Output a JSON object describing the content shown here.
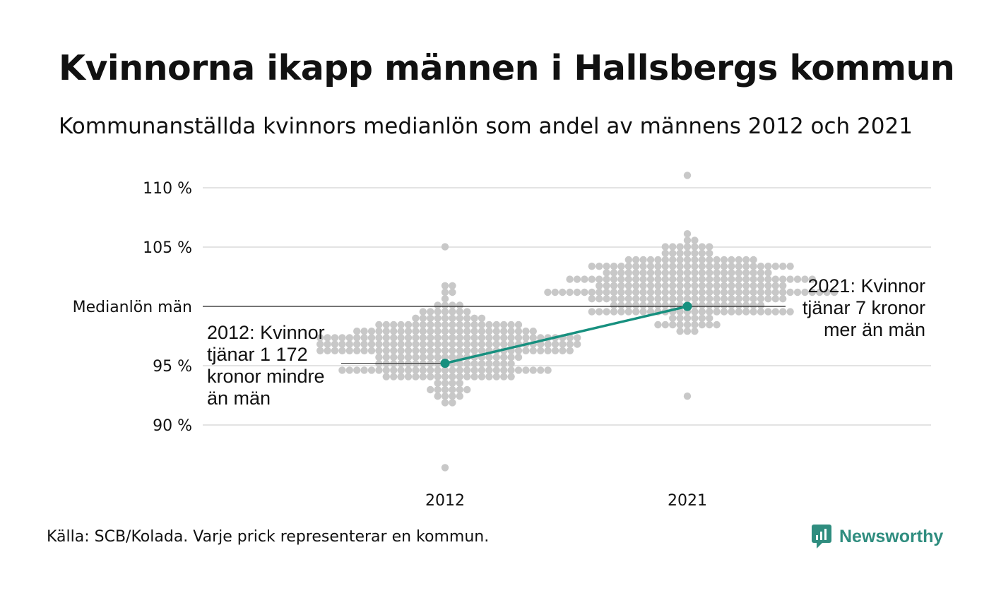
{
  "title": "Kvinnorna ikapp männen i Hallsbergs kommun",
  "subtitle": "Kommunanställda kvinnors medianlön som andel av männens 2012 och 2021",
  "source": "Källa: SCB/Kolada. Varje prick representerar en kommun.",
  "brand": "Newsworthy",
  "colors": {
    "accent": "#17907f",
    "dots": "#c8c8c8",
    "grid": "#e3e3e3",
    "text": "#111111"
  },
  "chart_data": {
    "type": "scatter",
    "subtype": "beeswarm",
    "categories": [
      "2012",
      "2021"
    ],
    "ylim": [
      86,
      112
    ],
    "y_ticks": [
      {
        "value": 110,
        "label": "110 %"
      },
      {
        "value": 105,
        "label": "105 %"
      },
      {
        "value": 100,
        "label": "Medianlön män"
      },
      {
        "value": 95,
        "label": "95 %"
      },
      {
        "value": 90,
        "label": "90 %"
      }
    ],
    "grid": true,
    "reference_line": {
      "value": 100,
      "label": "Medianlön män"
    },
    "highlight": {
      "name": "Hallsbergs kommun",
      "values": [
        {
          "x": "2012",
          "y": 95.2
        },
        {
          "x": "2021",
          "y": 100.0
        }
      ]
    },
    "annotations": [
      {
        "year": "2012",
        "lines": [
          "2012: Kvinnor",
          "tjänar 1 172",
          "kronor mindre",
          "än män"
        ]
      },
      {
        "year": "2021",
        "lines": [
          "2021: Kvinnor",
          "tjänar 7 kronor",
          "mer än män"
        ]
      }
    ],
    "distribution_summary": [
      {
        "year": "2012",
        "min": 86.5,
        "max": 105.2,
        "approx_center": 96.5
      },
      {
        "year": "2021",
        "min": 92.6,
        "max": 111.3,
        "approx_center": 101.5
      }
    ]
  }
}
